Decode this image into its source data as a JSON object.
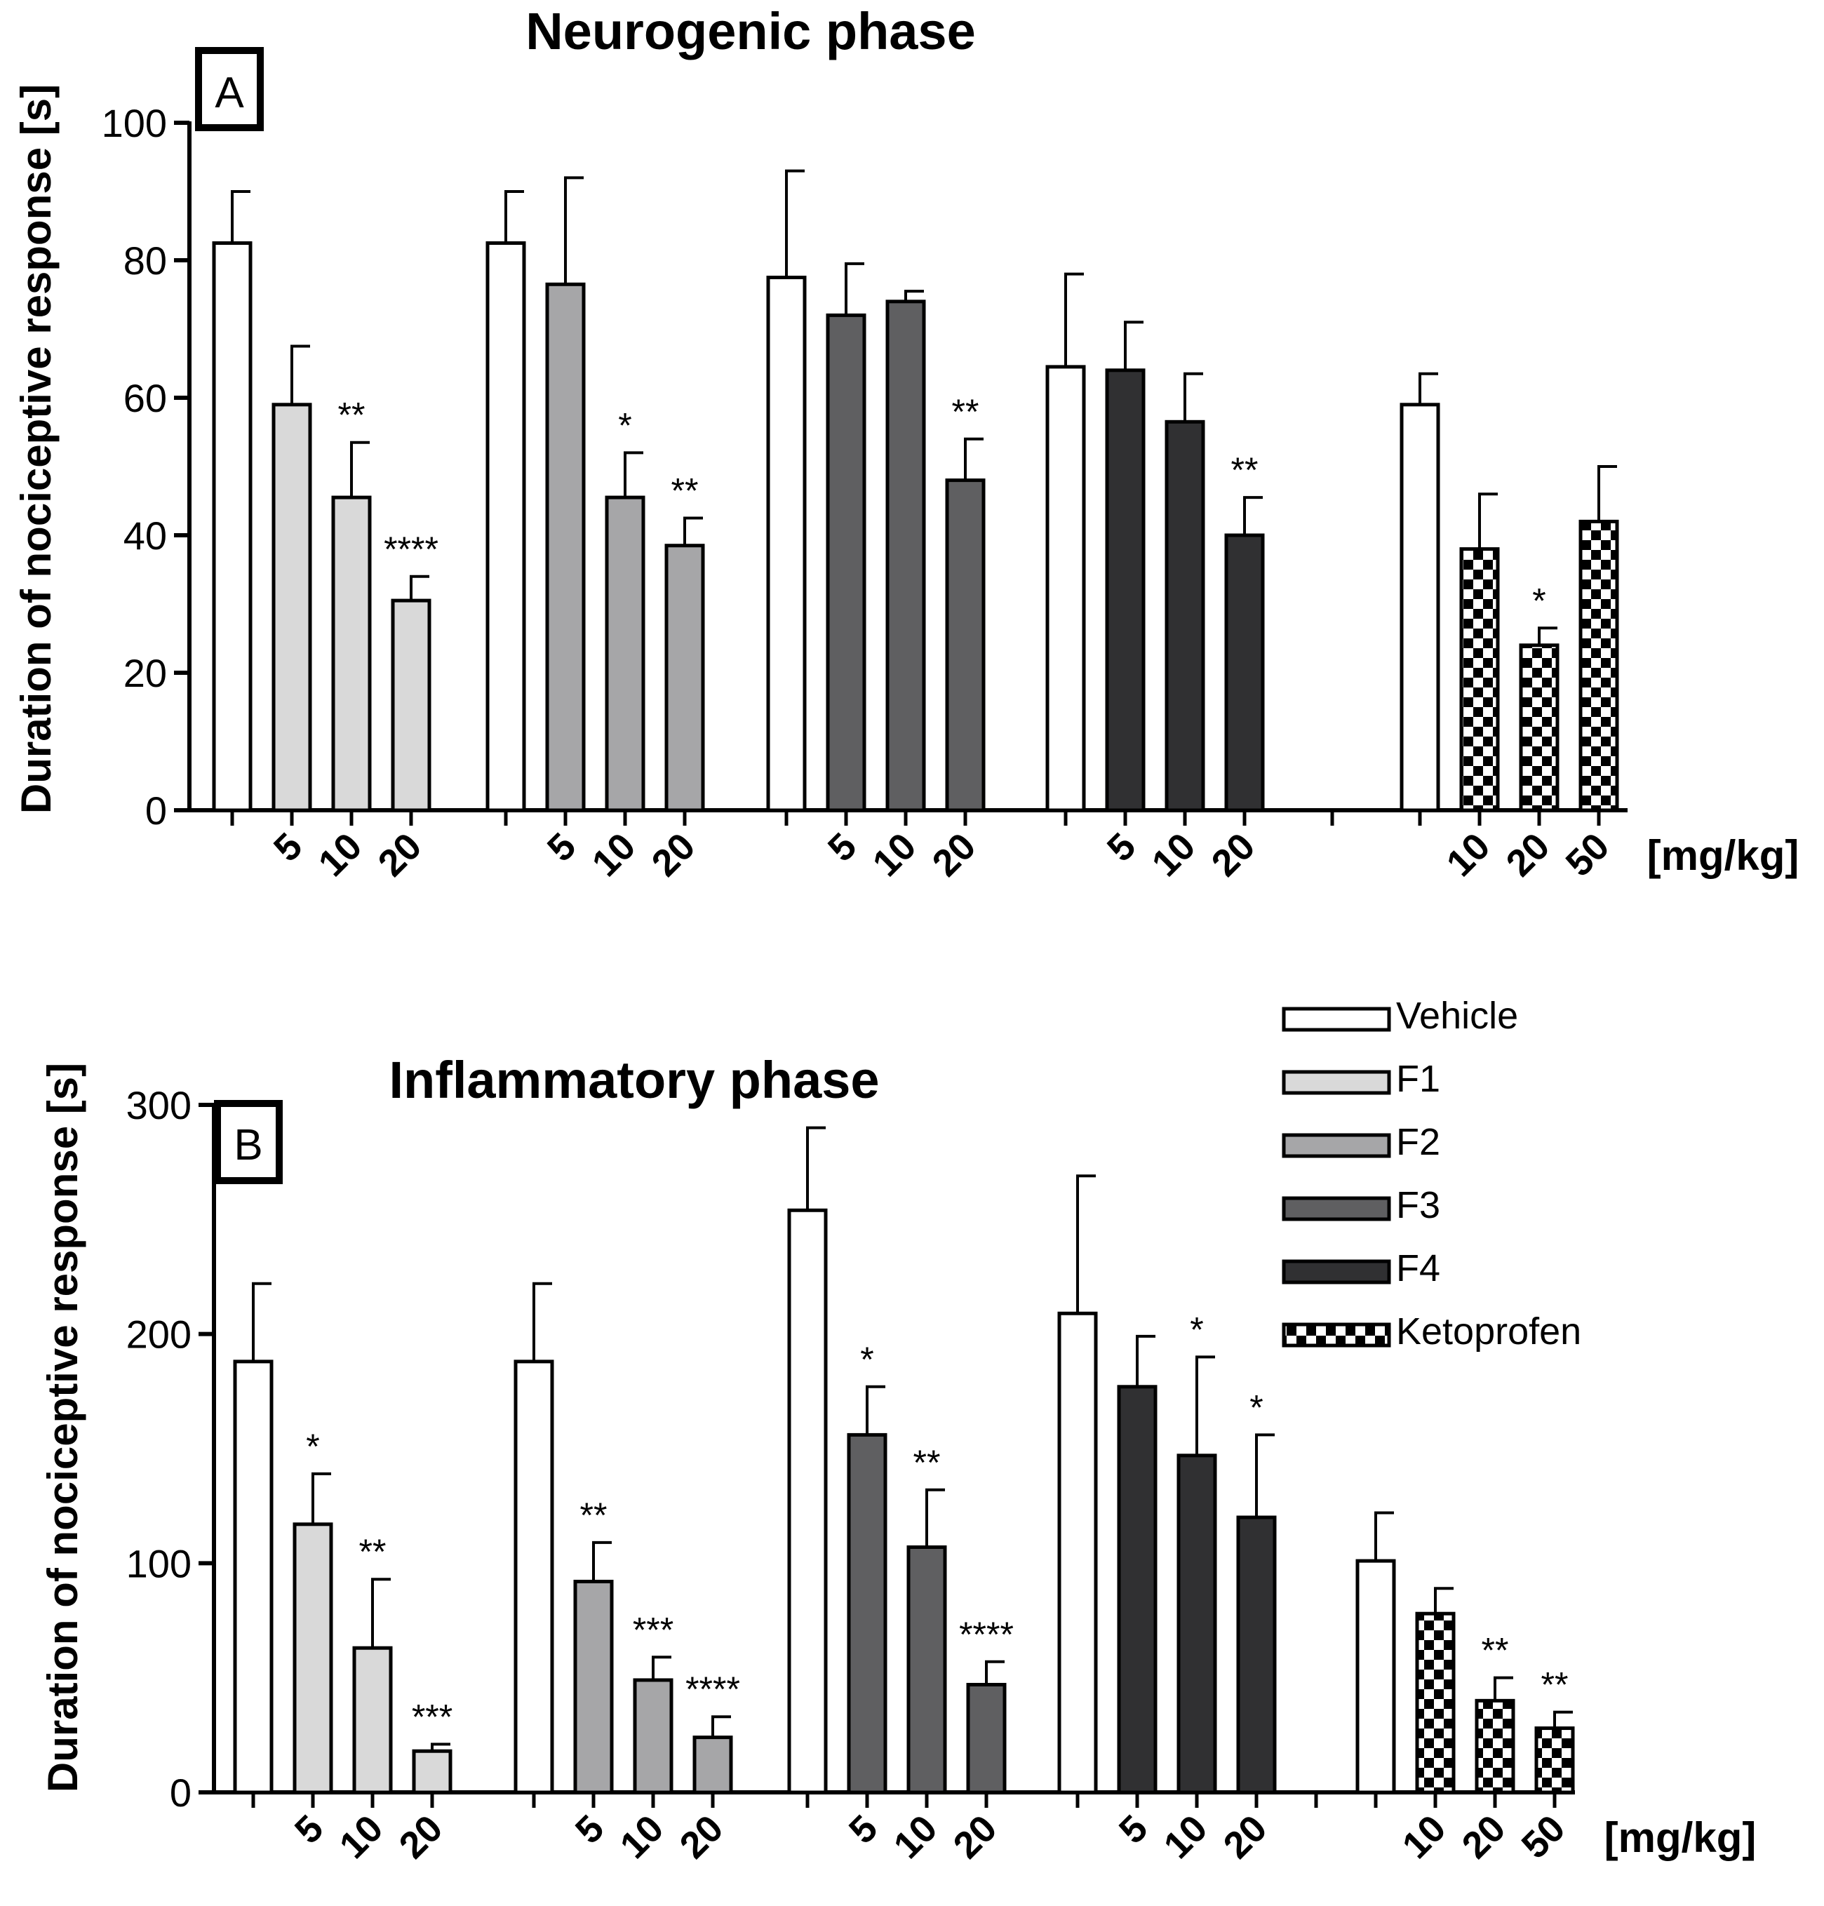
{
  "legend": {
    "items": [
      {
        "key": "vehicle",
        "label": "Vehicle"
      },
      {
        "key": "f1",
        "label": "F1"
      },
      {
        "key": "f2",
        "label": "F2"
      },
      {
        "key": "f3",
        "label": "F3"
      },
      {
        "key": "f4",
        "label": "F4"
      },
      {
        "key": "keto",
        "label": "Ketoprofen"
      }
    ],
    "colors": {
      "vehicle": "#ffffff",
      "f1": "#d9d9d9",
      "f2": "#a6a6a8",
      "f3": "#5f5f61",
      "f4": "#303032",
      "keto": "checker"
    }
  },
  "chart_data": [
    {
      "type": "bar",
      "panel": "A",
      "title": "Neurogenic phase",
      "ylabel": "Duration of nociceptive response [s]",
      "unit_label": "[mg/kg]",
      "ylim": [
        0,
        100
      ],
      "yticks": [
        "0",
        "20",
        "40",
        "60",
        "80",
        "100"
      ],
      "groups": [
        {
          "name": "F1",
          "bars": [
            {
              "series": "vehicle",
              "dose": "",
              "value": 82.5,
              "error": 7.5,
              "sig": ""
            },
            {
              "series": "f1",
              "dose": "5",
              "value": 59,
              "error": 8.5,
              "sig": ""
            },
            {
              "series": "f1",
              "dose": "10",
              "value": 45.5,
              "error": 8,
              "sig": "**"
            },
            {
              "series": "f1",
              "dose": "20",
              "value": 30.5,
              "error": 3.5,
              "sig": "****"
            }
          ]
        },
        {
          "name": "F2",
          "bars": [
            {
              "series": "vehicle",
              "dose": "",
              "value": 82.5,
              "error": 7.5,
              "sig": ""
            },
            {
              "series": "f2",
              "dose": "5",
              "value": 76.5,
              "error": 15.5,
              "sig": ""
            },
            {
              "series": "f2",
              "dose": "10",
              "value": 45.5,
              "error": 6.5,
              "sig": "*"
            },
            {
              "series": "f2",
              "dose": "20",
              "value": 38.5,
              "error": 4,
              "sig": "**"
            }
          ]
        },
        {
          "name": "F3",
          "bars": [
            {
              "series": "vehicle",
              "dose": "",
              "value": 77.5,
              "error": 15.5,
              "sig": ""
            },
            {
              "series": "f3",
              "dose": "5",
              "value": 72,
              "error": 7.5,
              "sig": ""
            },
            {
              "series": "f3",
              "dose": "10",
              "value": 74,
              "error": 1.5,
              "sig": ""
            },
            {
              "series": "f3",
              "dose": "20",
              "value": 48,
              "error": 6,
              "sig": "**"
            }
          ]
        },
        {
          "name": "F4",
          "bars": [
            {
              "series": "vehicle",
              "dose": "",
              "value": 64.5,
              "error": 13.5,
              "sig": ""
            },
            {
              "series": "f4",
              "dose": "5",
              "value": 64,
              "error": 7,
              "sig": ""
            },
            {
              "series": "f4",
              "dose": "10",
              "value": 56.5,
              "error": 7,
              "sig": ""
            },
            {
              "series": "f4",
              "dose": "20",
              "value": 40,
              "error": 5.5,
              "sig": "**"
            }
          ]
        },
        {
          "name": "Ketoprofen",
          "bars": [
            {
              "series": "vehicle",
              "dose": "",
              "value": 59,
              "error": 4.5,
              "sig": ""
            },
            {
              "series": "keto",
              "dose": "10",
              "value": 38,
              "error": 8,
              "sig": ""
            },
            {
              "series": "keto",
              "dose": "20",
              "value": 24,
              "error": 2.5,
              "sig": "*"
            },
            {
              "series": "keto",
              "dose": "50",
              "value": 42,
              "error": 8,
              "sig": ""
            }
          ]
        }
      ]
    },
    {
      "type": "bar",
      "panel": "B",
      "title": "Inflammatory phase",
      "ylabel": "Duration of nociceptive response [s]",
      "unit_label": "[mg/kg]",
      "ylim": [
        0,
        300
      ],
      "yticks": [
        "0",
        "100",
        "200",
        "300"
      ],
      "groups": [
        {
          "name": "F1",
          "bars": [
            {
              "series": "vehicle",
              "dose": "",
              "value": 188,
              "error": 34,
              "sig": ""
            },
            {
              "series": "f1",
              "dose": "5",
              "value": 117,
              "error": 22,
              "sig": "*"
            },
            {
              "series": "f1",
              "dose": "10",
              "value": 63,
              "error": 30,
              "sig": "**"
            },
            {
              "series": "f1",
              "dose": "20",
              "value": 18,
              "error": 3,
              "sig": "***"
            }
          ]
        },
        {
          "name": "F2",
          "bars": [
            {
              "series": "vehicle",
              "dose": "",
              "value": 188,
              "error": 34,
              "sig": ""
            },
            {
              "series": "f2",
              "dose": "5",
              "value": 92,
              "error": 17,
              "sig": "**"
            },
            {
              "series": "f2",
              "dose": "10",
              "value": 49,
              "error": 10,
              "sig": "***"
            },
            {
              "series": "f2",
              "dose": "20",
              "value": 24,
              "error": 9,
              "sig": "****"
            }
          ]
        },
        {
          "name": "F3",
          "bars": [
            {
              "series": "vehicle",
              "dose": "",
              "value": 254,
              "error": 36,
              "sig": ""
            },
            {
              "series": "f3",
              "dose": "5",
              "value": 156,
              "error": 21,
              "sig": "*"
            },
            {
              "series": "f3",
              "dose": "10",
              "value": 107,
              "error": 25,
              "sig": "**"
            },
            {
              "series": "f3",
              "dose": "20",
              "value": 47,
              "error": 10,
              "sig": "****"
            }
          ]
        },
        {
          "name": "F4",
          "bars": [
            {
              "series": "vehicle",
              "dose": "",
              "value": 209,
              "error": 60,
              "sig": ""
            },
            {
              "series": "f4",
              "dose": "5",
              "value": 177,
              "error": 22,
              "sig": ""
            },
            {
              "series": "f4",
              "dose": "10",
              "value": 147,
              "error": 43,
              "sig": "*"
            },
            {
              "series": "f4",
              "dose": "20",
              "value": 120,
              "error": 36,
              "sig": "*"
            }
          ]
        },
        {
          "name": "Ketoprofen",
          "bars": [
            {
              "series": "vehicle",
              "dose": "",
              "value": 101,
              "error": 21,
              "sig": ""
            },
            {
              "series": "keto",
              "dose": "10",
              "value": 78,
              "error": 11,
              "sig": ""
            },
            {
              "series": "keto",
              "dose": "20",
              "value": 40,
              "error": 10,
              "sig": "**"
            },
            {
              "series": "keto",
              "dose": "50",
              "value": 28,
              "error": 7,
              "sig": "**"
            }
          ]
        }
      ]
    }
  ]
}
